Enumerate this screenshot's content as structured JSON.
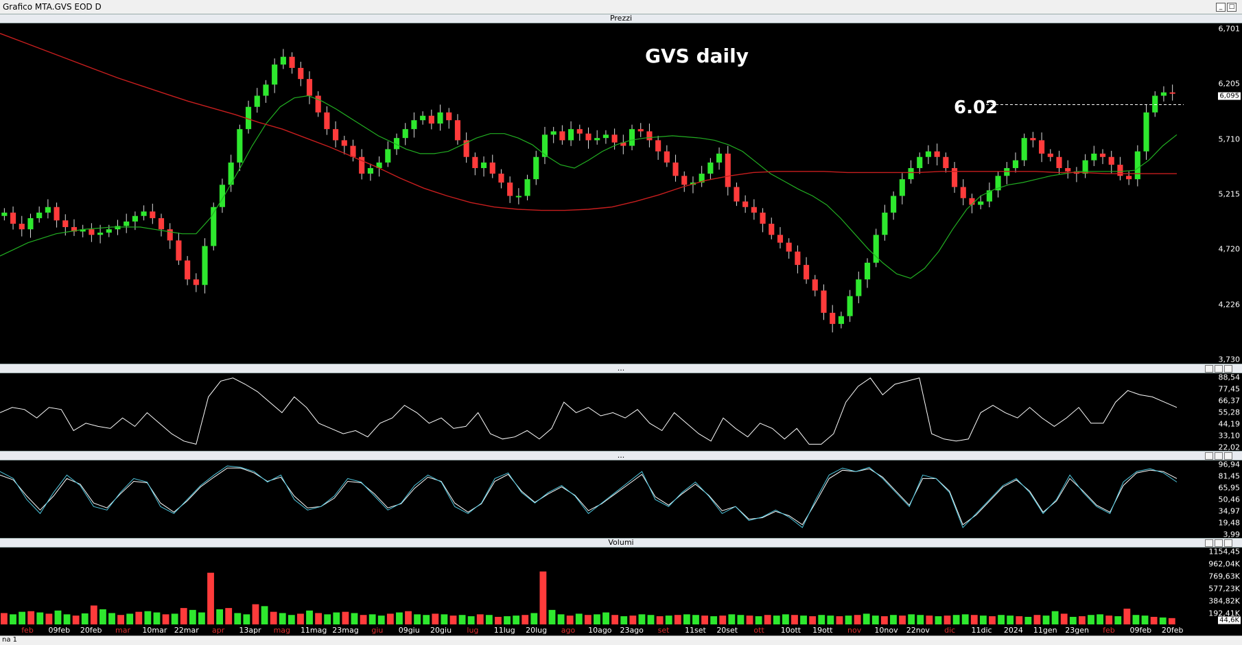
{
  "window": {
    "title": "Grafico MTA.GVS EOD D"
  },
  "status_tab": "na 1",
  "panes": {
    "price": {
      "header": "Prezzi",
      "title": "GVS daily",
      "annotation": "6.02",
      "yticks": [
        "6,701",
        "6,205",
        "5,710",
        "5,215",
        "4,720",
        "4,226",
        "3,730"
      ],
      "last_value": "6,095"
    },
    "osc1": {
      "header": "...",
      "yticks": [
        "88,54",
        "77,45",
        "66,37",
        "55,28",
        "44,19",
        "33,10",
        "22,02"
      ]
    },
    "osc2": {
      "header": "...",
      "yticks": [
        "96,94",
        "81,45",
        "65,95",
        "50,46",
        "34,97",
        "19,48",
        "3,99"
      ]
    },
    "volume": {
      "header": "Volumi",
      "yticks": [
        "1154,45",
        "962,04K",
        "769,63K",
        "577,23K",
        "384,82K",
        "192,41K"
      ],
      "last_value": "44,6K"
    }
  },
  "xaxis": {
    "labels": [
      {
        "t": "feb",
        "red": true
      },
      {
        "t": "09feb",
        "red": false
      },
      {
        "t": "20feb",
        "red": false
      },
      {
        "t": "mar",
        "red": true
      },
      {
        "t": "10mar",
        "red": false
      },
      {
        "t": "22mar",
        "red": false
      },
      {
        "t": "apr",
        "red": true
      },
      {
        "t": "13apr",
        "red": false
      },
      {
        "t": "mag",
        "red": true
      },
      {
        "t": "11mag",
        "red": false
      },
      {
        "t": "23mag",
        "red": false
      },
      {
        "t": "giu",
        "red": true
      },
      {
        "t": "09giu",
        "red": false
      },
      {
        "t": "20giu",
        "red": false
      },
      {
        "t": "lug",
        "red": true
      },
      {
        "t": "11lug",
        "red": false
      },
      {
        "t": "20lug",
        "red": false
      },
      {
        "t": "ago",
        "red": true
      },
      {
        "t": "10ago",
        "red": false
      },
      {
        "t": "23ago",
        "red": false
      },
      {
        "t": "set",
        "red": true
      },
      {
        "t": "11set",
        "red": false
      },
      {
        "t": "20set",
        "red": false
      },
      {
        "t": "ott",
        "red": true
      },
      {
        "t": "10ott",
        "red": false
      },
      {
        "t": "19ott",
        "red": false
      },
      {
        "t": "nov",
        "red": true
      },
      {
        "t": "10nov",
        "red": false
      },
      {
        "t": "22nov",
        "red": false
      },
      {
        "t": "dic",
        "red": true
      },
      {
        "t": "11dic",
        "red": false
      },
      {
        "t": "2024",
        "red": false
      },
      {
        "t": "11gen",
        "red": false
      },
      {
        "t": "23gen",
        "red": false
      },
      {
        "t": "feb",
        "red": true
      },
      {
        "t": "09feb",
        "red": false
      },
      {
        "t": "20feb",
        "red": false
      }
    ]
  },
  "colors": {
    "up": "#2ee82e",
    "down": "#ff3b3b",
    "ma_short": "#22b022",
    "ma_long": "#c81e1e",
    "osc_k": "#ffffff",
    "osc_d": "#4fc8e0"
  },
  "chart_data": [
    {
      "type": "candlestick",
      "title": "GVS daily",
      "ylim": [
        3.73,
        6.701
      ],
      "annotation": {
        "label": "6.02",
        "y": 6.02
      },
      "close_series": [
        5.05,
        4.95,
        4.9,
        5.0,
        5.05,
        5.1,
        4.98,
        4.92,
        4.88,
        4.9,
        4.85,
        4.87,
        4.9,
        4.93,
        4.97,
        5.02,
        5.06,
        5.0,
        4.9,
        4.8,
        4.62,
        4.45,
        4.4,
        4.75,
        5.1,
        5.3,
        5.5,
        5.8,
        6.0,
        6.1,
        6.2,
        6.38,
        6.45,
        6.35,
        6.25,
        6.1,
        5.95,
        5.8,
        5.7,
        5.65,
        5.55,
        5.4,
        5.45,
        5.5,
        5.62,
        5.72,
        5.8,
        5.88,
        5.92,
        5.85,
        5.95,
        5.88,
        5.7,
        5.55,
        5.45,
        5.5,
        5.4,
        5.32,
        5.2,
        5.2,
        5.35,
        5.55,
        5.75,
        5.78,
        5.7,
        5.8,
        5.76,
        5.7,
        5.72,
        5.75,
        5.68,
        5.65,
        5.8,
        5.78,
        5.7,
        5.6,
        5.5,
        5.38,
        5.3,
        5.32,
        5.4,
        5.5,
        5.58,
        5.28,
        5.15,
        5.1,
        5.05,
        4.95,
        4.85,
        4.78,
        4.7,
        4.58,
        4.45,
        4.35,
        4.15,
        4.05,
        4.12,
        4.3,
        4.45,
        4.6,
        4.85,
        5.05,
        5.2,
        5.35,
        5.45,
        5.55,
        5.6,
        5.55,
        5.45,
        5.28,
        5.18,
        5.12,
        5.15,
        5.25,
        5.38,
        5.45,
        5.52,
        5.72,
        5.7,
        5.58,
        5.55,
        5.45,
        5.42,
        5.4,
        5.52,
        5.58,
        5.55,
        5.48,
        5.38,
        5.35,
        5.6,
        5.95,
        6.1,
        6.13,
        6.12
      ],
      "ma_short": [
        4.66,
        4.72,
        4.78,
        4.82,
        4.86,
        4.88,
        4.9,
        4.91,
        4.92,
        4.92,
        4.92,
        4.9,
        4.88,
        4.86,
        4.86,
        5.0,
        5.2,
        5.42,
        5.65,
        5.85,
        6.0,
        6.08,
        6.1,
        6.05,
        5.98,
        5.9,
        5.82,
        5.74,
        5.68,
        5.62,
        5.58,
        5.58,
        5.6,
        5.66,
        5.72,
        5.76,
        5.76,
        5.72,
        5.66,
        5.56,
        5.48,
        5.45,
        5.52,
        5.6,
        5.66,
        5.7,
        5.72,
        5.73,
        5.74,
        5.73,
        5.72,
        5.7,
        5.66,
        5.6,
        5.5,
        5.4,
        5.33,
        5.26,
        5.2,
        5.12,
        5.0,
        4.86,
        4.72,
        4.6,
        4.5,
        4.46,
        4.55,
        4.7,
        4.9,
        5.08,
        5.2,
        5.26,
        5.3,
        5.32,
        5.35,
        5.38,
        5.4,
        5.42,
        5.42,
        5.42,
        5.42,
        5.43,
        5.52,
        5.65,
        5.75
      ],
      "ma_long": [
        6.66,
        6.58,
        6.5,
        6.42,
        6.34,
        6.26,
        6.19,
        6.12,
        6.05,
        5.99,
        5.93,
        5.86,
        5.8,
        5.72,
        5.64,
        5.55,
        5.46,
        5.36,
        5.27,
        5.2,
        5.14,
        5.1,
        5.08,
        5.07,
        5.07,
        5.08,
        5.1,
        5.15,
        5.21,
        5.28,
        5.34,
        5.38,
        5.41,
        5.42,
        5.42,
        5.42,
        5.41,
        5.41,
        5.41,
        5.41,
        5.42,
        5.42,
        5.42,
        5.42,
        5.42,
        5.41,
        5.41,
        5.4,
        5.4,
        5.4,
        5.4
      ]
    },
    {
      "type": "line",
      "ylim": [
        22.02,
        88.54
      ],
      "values": [
        55,
        60,
        58,
        50,
        60,
        58,
        38,
        45,
        42,
        40,
        50,
        42,
        55,
        45,
        35,
        28,
        25,
        70,
        85,
        88,
        82,
        75,
        65,
        55,
        70,
        60,
        45,
        40,
        35,
        38,
        32,
        45,
        50,
        62,
        55,
        45,
        50,
        40,
        42,
        55,
        35,
        30,
        32,
        38,
        30,
        40,
        65,
        55,
        60,
        52,
        55,
        50,
        58,
        45,
        38,
        55,
        45,
        35,
        28,
        50,
        40,
        32,
        45,
        40,
        30,
        40,
        25,
        25,
        35,
        65,
        80,
        88,
        72,
        82,
        85,
        88,
        35,
        30,
        28,
        30,
        55,
        62,
        55,
        50,
        60,
        50,
        42,
        50,
        60,
        45,
        45,
        65,
        76,
        72,
        70,
        65,
        60
      ]
    },
    {
      "type": "line",
      "series": [
        {
          "values": [
            90,
            80,
            50,
            30,
            60,
            85,
            70,
            40,
            35,
            60,
            80,
            75,
            40,
            30,
            50,
            70,
            85,
            98,
            96,
            90,
            75,
            85,
            50,
            35,
            40,
            55,
            80,
            75,
            55,
            35,
            45,
            70,
            85,
            75,
            40,
            30,
            45,
            80,
            88,
            60,
            45,
            60,
            70,
            55,
            30,
            45,
            60,
            75,
            90,
            50,
            40,
            60,
            75,
            55,
            30,
            40,
            20,
            25,
            35,
            25,
            10,
            50,
            85,
            95,
            90,
            96,
            80,
            60,
            40,
            85,
            80,
            60,
            10,
            30,
            50,
            70,
            80,
            60,
            30,
            50,
            85,
            60,
            40,
            30,
            75,
            90,
            94,
            88,
            75
          ]
        },
        {
          "values": [
            85,
            78,
            55,
            35,
            55,
            80,
            72,
            45,
            38,
            58,
            76,
            74,
            45,
            32,
            48,
            68,
            82,
            95,
            95,
            88,
            76,
            82,
            55,
            38,
            40,
            52,
            76,
            74,
            58,
            38,
            44,
            66,
            82,
            76,
            45,
            32,
            44,
            76,
            86,
            62,
            46,
            58,
            68,
            56,
            34,
            44,
            58,
            72,
            86,
            54,
            42,
            58,
            72,
            56,
            34,
            40,
            22,
            24,
            33,
            27,
            14,
            46,
            80,
            92,
            90,
            94,
            82,
            62,
            42,
            80,
            80,
            62,
            14,
            28,
            48,
            68,
            78,
            62,
            32,
            48,
            80,
            62,
            42,
            32,
            70,
            88,
            92,
            90,
            80
          ]
        }
      ]
    },
    {
      "type": "bar",
      "ylim": [
        0,
        1154
      ],
      "values": [
        180,
        160,
        200,
        210,
        190,
        170,
        220,
        160,
        140,
        175,
        300,
        240,
        180,
        150,
        170,
        200,
        210,
        190,
        160,
        170,
        260,
        230,
        190,
        820,
        240,
        260,
        180,
        160,
        320,
        290,
        200,
        180,
        150,
        170,
        220,
        180,
        160,
        190,
        200,
        180,
        150,
        160,
        140,
        170,
        190,
        210,
        160,
        150,
        170,
        160,
        140,
        150,
        130,
        160,
        150,
        120,
        130,
        140,
        150,
        180,
        840,
        230,
        160,
        140,
        170,
        150,
        160,
        190,
        150,
        130,
        140,
        160,
        150,
        130,
        140,
        150,
        160,
        150,
        140,
        130,
        140,
        160,
        150,
        140,
        130,
        150,
        140,
        160,
        150,
        140,
        130,
        150,
        140,
        130,
        140,
        150,
        170,
        140,
        130,
        150,
        140,
        160,
        150,
        140,
        130,
        140,
        150,
        160,
        150,
        140,
        130,
        150,
        140,
        130,
        120,
        150,
        140,
        210,
        170,
        120,
        130,
        150,
        160,
        140,
        130,
        250,
        150,
        140,
        120,
        110,
        100
      ]
    }
  ]
}
